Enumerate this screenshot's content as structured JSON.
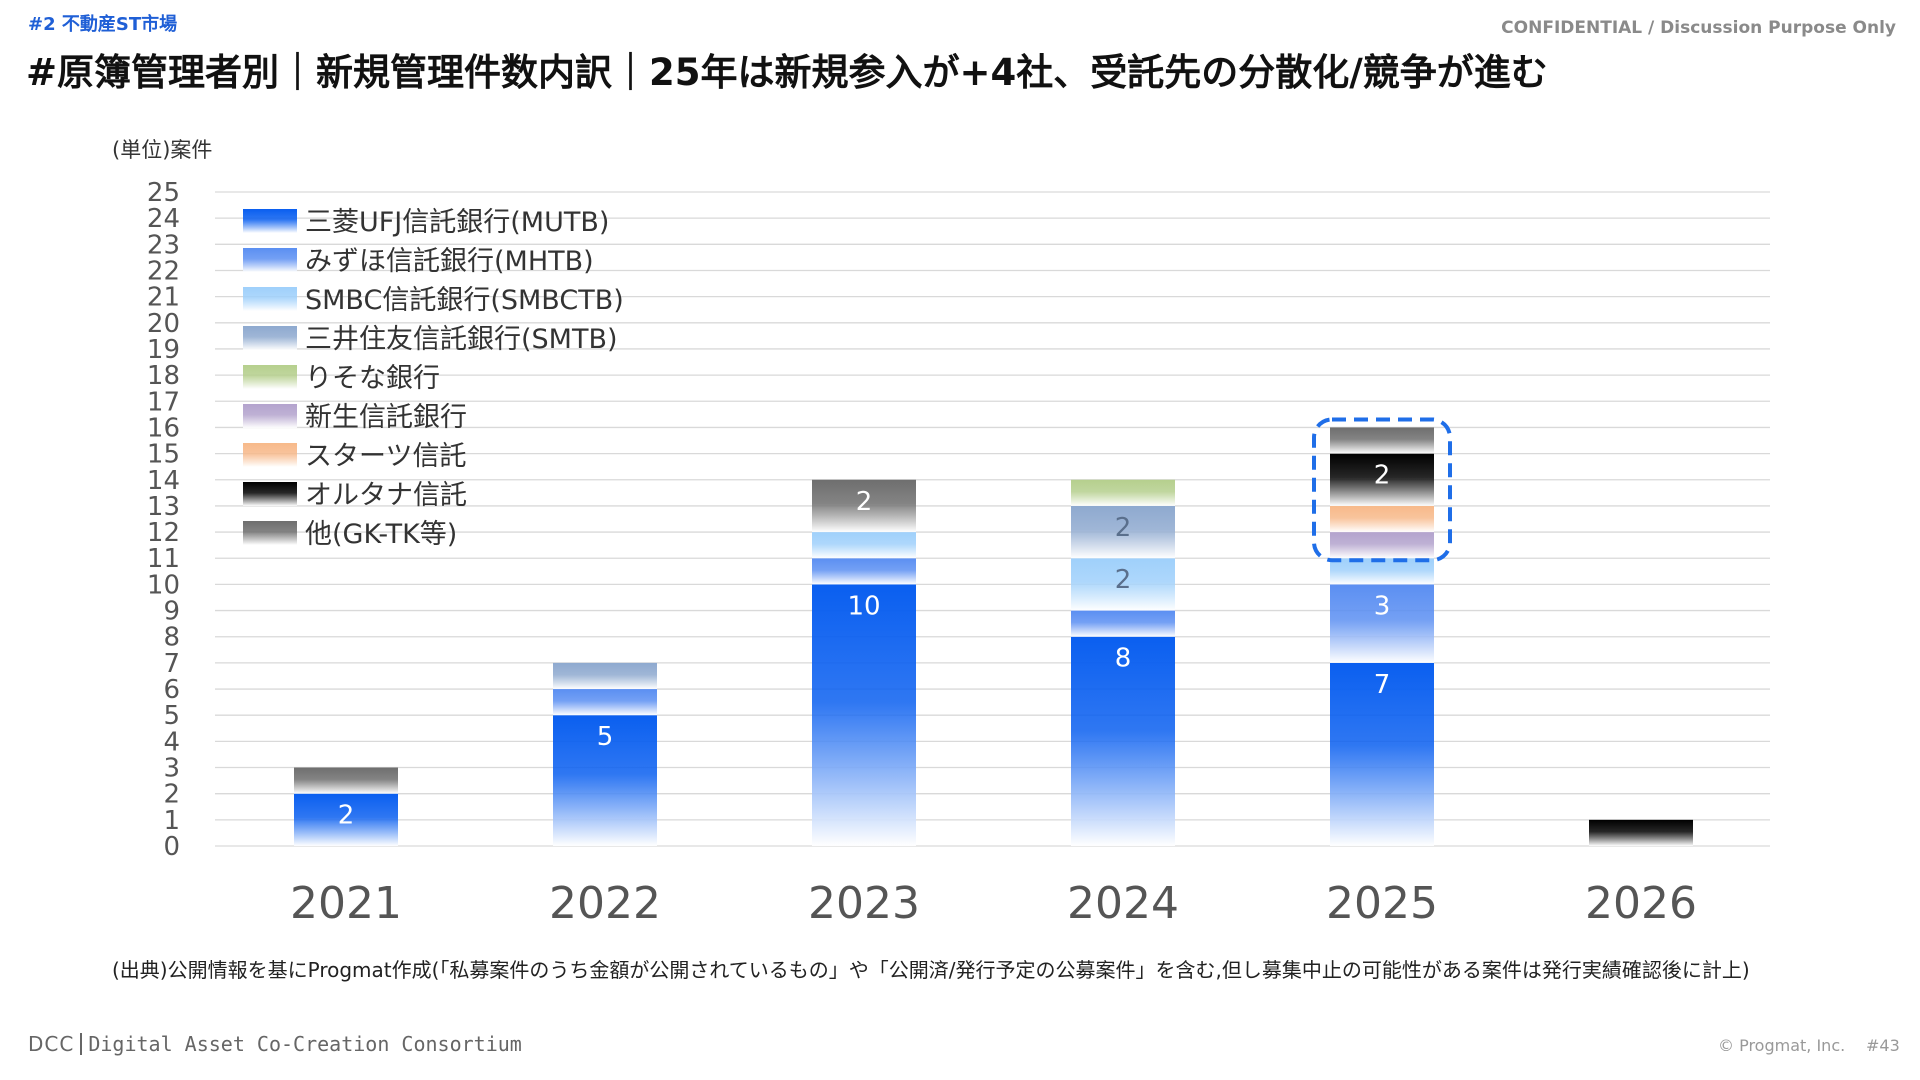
{
  "header": {
    "section_tag": "#2 不動産ST市場",
    "confidential": "CONFIDENTIAL / Discussion Purpose Only",
    "title": "#原簿管理者別｜新規管理件数内訳｜25年は新規参入が+4社、受託先の分散化/競争が進む"
  },
  "chart_data": {
    "type": "bar",
    "stacked": true,
    "unit_label": "(単位)案件",
    "ylim": [
      0,
      25
    ],
    "y_ticks": [
      0,
      1,
      2,
      3,
      4,
      5,
      6,
      7,
      8,
      9,
      10,
      11,
      12,
      13,
      14,
      15,
      16,
      17,
      18,
      19,
      20,
      21,
      22,
      23,
      24,
      25
    ],
    "grid": true,
    "legend_position": "top-left",
    "categories": [
      "2021",
      "2022",
      "2023",
      "2024",
      "2025",
      "2026"
    ],
    "series": [
      {
        "name": "三菱UFJ信託銀行(MUTB)",
        "color": "#0a5ff0",
        "values": [
          2,
          5,
          10,
          8,
          7,
          0
        ]
      },
      {
        "name": "みずほ信託銀行(MHTB)",
        "color": "#5b8ff2",
        "values": [
          0,
          1,
          1,
          1,
          3,
          0
        ]
      },
      {
        "name": "SMBC信託銀行(SMBCTB)",
        "color": "#9fd0fb",
        "values": [
          0,
          0,
          1,
          2,
          1,
          0
        ]
      },
      {
        "name": "三井住友信託銀行(SMTB)",
        "color": "#8ea9cf",
        "values": [
          0,
          1,
          0,
          2,
          0,
          0
        ]
      },
      {
        "name": "りそな銀行",
        "color": "#b5cf8d",
        "values": [
          0,
          0,
          0,
          1,
          0,
          0
        ]
      },
      {
        "name": "新生信託銀行",
        "color": "#b3a3cd",
        "values": [
          0,
          0,
          0,
          0,
          1,
          0
        ]
      },
      {
        "name": "スターツ信託",
        "color": "#f7b98a",
        "values": [
          0,
          0,
          0,
          0,
          1,
          0
        ]
      },
      {
        "name": "オルタナ信託",
        "color": "#000000",
        "values": [
          0,
          0,
          0,
          0,
          2,
          1
        ]
      },
      {
        "name": "他(GK-TK等)",
        "color": "#6e6e6e",
        "values": [
          1,
          0,
          2,
          0,
          1,
          0
        ]
      }
    ],
    "data_labels": [
      {
        "category": "2021",
        "series": "三菱UFJ信託銀行(MUTB)",
        "text": "2"
      },
      {
        "category": "2022",
        "series": "三菱UFJ信託銀行(MUTB)",
        "text": "5"
      },
      {
        "category": "2023",
        "series": "三菱UFJ信託銀行(MUTB)",
        "text": "10"
      },
      {
        "category": "2023",
        "series": "他(GK-TK等)",
        "text": "2"
      },
      {
        "category": "2024",
        "series": "三菱UFJ信託銀行(MUTB)",
        "text": "8"
      },
      {
        "category": "2024",
        "series": "SMBC信託銀行(SMBCTB)",
        "text": "2"
      },
      {
        "category": "2024",
        "series": "三井住友信託銀行(SMTB)",
        "text": "2"
      },
      {
        "category": "2025",
        "series": "三菱UFJ信託銀行(MUTB)",
        "text": "7"
      },
      {
        "category": "2025",
        "series": "みずほ信託銀行(MHTB)",
        "text": "3"
      },
      {
        "category": "2025",
        "series": "オルタナ信託",
        "text": "2"
      }
    ],
    "highlight": {
      "category": "2025",
      "from_value": 11,
      "to_value": 16,
      "style": "dashed",
      "color": "#1f6ee8"
    }
  },
  "footer": {
    "source_note": "(出典)公開情報を基にProgmat作成(「私募案件のうち金額が公開されているもの」や「公開済/発行予定の公募案件」を含む,但し募集中止の可能性がある案件は発行実績確認後に計上)",
    "logo_short": "DCC",
    "logo_full": "Digital Asset Co-Creation Consortium",
    "copyright": "© Progmat, Inc.",
    "page_number": "#43"
  }
}
